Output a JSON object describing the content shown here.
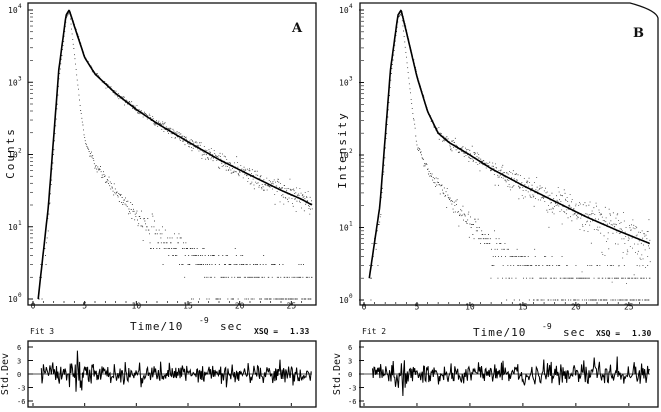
{
  "chart_data": [
    {
      "type": "scatter",
      "panel": "A",
      "ylabel": "Counts",
      "xlabel": "Time/10",
      "xlabel_exp": "-9",
      "xlabel_unit": "sec",
      "yscale": "log",
      "ylim": [
        1,
        10000
      ],
      "xlim": [
        0,
        27
      ],
      "x_ticks": [
        "0",
        "5",
        "10",
        "15",
        "20",
        "25"
      ],
      "y_ticks": [
        {
          "base": "10",
          "exp": "0"
        },
        {
          "base": "10",
          "exp": "1"
        },
        {
          "base": "10",
          "exp": "2"
        },
        {
          "base": "10",
          "exp": "3"
        },
        {
          "base": "10",
          "exp": "4"
        }
      ],
      "fit_label": "Fit 3",
      "chi_label": "XSQ =",
      "chi_value": "1.33",
      "curve_type": "triexp",
      "series": [
        {
          "name": "",
          "kind": "fit",
          "x": [
            0.5,
            1.5,
            2.5,
            3.2,
            3.5,
            4,
            5,
            6,
            8,
            10,
            12,
            15,
            18,
            21,
            24,
            26,
            27
          ],
          "y": [
            1,
            20,
            1500,
            8500,
            10000,
            6000,
            2200,
            1300,
            700,
            420,
            270,
            150,
            85,
            52,
            32,
            24,
            20
          ]
        },
        {
          "name": "",
          "kind": "lamp",
          "x": [
            0.5,
            1.5,
            2.5,
            3.2,
            3.5,
            4,
            4.5,
            5,
            6,
            8,
            10,
            12,
            15,
            18,
            21,
            24,
            27
          ],
          "y": [
            1,
            15,
            1200,
            8000,
            9500,
            2200,
            500,
            150,
            70,
            30,
            15,
            8,
            4,
            2.5,
            1.8,
            1.5,
            1.2
          ]
        }
      ],
      "residual": {
        "ylabel": "Std.Dev",
        "ylim": [
          -6,
          6
        ],
        "y_ticks": [
          "6",
          "3",
          "0",
          "-3",
          "-6"
        ]
      }
    },
    {
      "type": "scatter",
      "panel": "B",
      "ylabel": "Intensity",
      "xlabel": "Time/10",
      "xlabel_exp": "-9",
      "xlabel_unit": "sec",
      "yscale": "log",
      "ylim": [
        1,
        10000
      ],
      "xlim": [
        0,
        27
      ],
      "x_ticks": [
        "0",
        "5",
        "10",
        "15",
        "20",
        "25"
      ],
      "y_ticks": [
        {
          "base": "10",
          "exp": "0"
        },
        {
          "base": "10",
          "exp": "1"
        },
        {
          "base": "10",
          "exp": "2"
        },
        {
          "base": "10",
          "exp": "3"
        },
        {
          "base": "10",
          "exp": "4"
        }
      ],
      "fit_label": "Fit 2",
      "chi_label": "XSQ =",
      "chi_value": "1.30",
      "curve_type": "biexp",
      "series": [
        {
          "name": "",
          "kind": "fit",
          "x": [
            0.5,
            1.5,
            2.5,
            3.2,
            3.5,
            4,
            5,
            6,
            7,
            8,
            10,
            12,
            15,
            18,
            21,
            24,
            27
          ],
          "y": [
            2,
            20,
            1500,
            8500,
            10000,
            5000,
            1200,
            400,
            200,
            150,
            100,
            65,
            38,
            23,
            14,
            9,
            6
          ]
        },
        {
          "name": "",
          "kind": "lamp",
          "x": [
            0.5,
            1.5,
            2.5,
            3.2,
            3.5,
            4,
            4.5,
            5,
            6,
            8,
            10,
            12,
            15,
            18,
            21,
            24,
            27
          ],
          "y": [
            2,
            15,
            1200,
            8000,
            9000,
            2000,
            450,
            130,
            60,
            25,
            12,
            6,
            3,
            2,
            1.5,
            1.3,
            1.2
          ]
        }
      ],
      "residual": {
        "ylabel": "Std.Dev",
        "ylim": [
          -6,
          6
        ],
        "y_ticks": [
          "6",
          "3",
          "0",
          "-3",
          "-6"
        ]
      }
    }
  ]
}
